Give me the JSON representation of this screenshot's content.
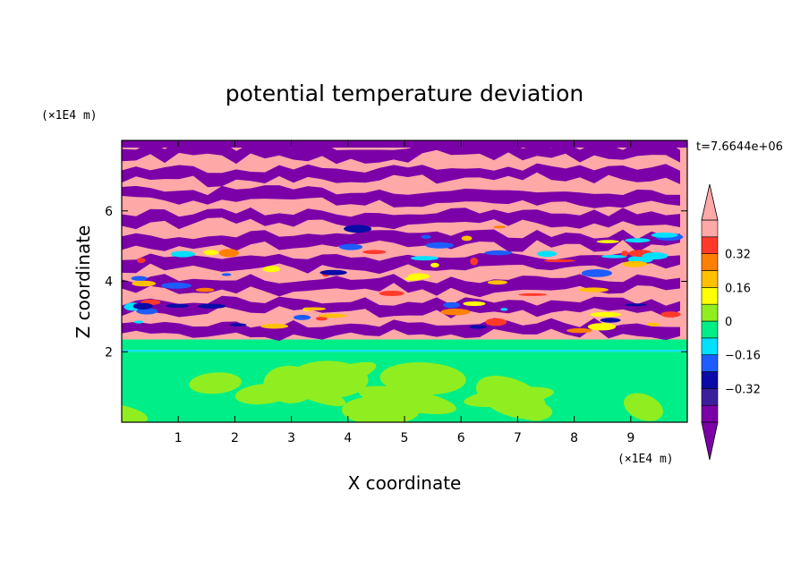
{
  "chart_data": {
    "type": "heatmap",
    "title": "potential temperature deviation",
    "xlabel": "X coordinate",
    "ylabel": "Z coordinate",
    "x_unit": "(×1E4 m)",
    "y_unit": "(×1E4 m)",
    "time_label": "t=7.6644e+06",
    "xlim": [
      0,
      10
    ],
    "ylim": [
      0,
      8
    ],
    "x_ticks": [
      1,
      2,
      3,
      4,
      5,
      6,
      7,
      8,
      9
    ],
    "y_ticks": [
      2,
      4,
      6
    ],
    "colorbar": {
      "levels": [
        -0.48,
        -0.4,
        -0.32,
        -0.24,
        -0.16,
        -0.08,
        0,
        0.08,
        0.16,
        0.24,
        0.32,
        0.4,
        0.48
      ],
      "tick_values": [
        0.32,
        0.16,
        0,
        -0.16,
        -0.32
      ],
      "tick_labels": [
        "0.32",
        "0.16",
        "0",
        "−0.16",
        "−0.32"
      ],
      "colors": [
        "#7b00a8",
        "#3a1f9c",
        "#0a0aa6",
        "#1e5cff",
        "#00e0ff",
        "#00ee88",
        "#90ee20",
        "#ffff00",
        "#ffc000",
        "#ff8000",
        "#ff3a2a",
        "#ffa8a8"
      ],
      "extend": "both"
    },
    "grid": false,
    "legend": "colorbar-right"
  }
}
